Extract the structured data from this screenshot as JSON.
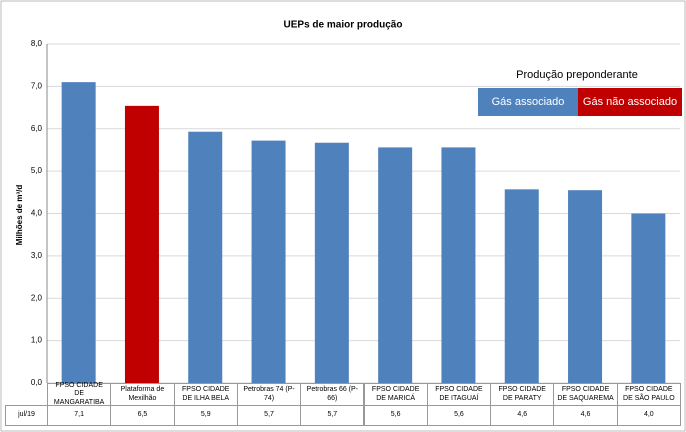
{
  "chart_data": {
    "type": "bar",
    "title": "UEPs de maior produção",
    "y_label": "Milhões de m³/d",
    "categories": [
      "FPSO CIDADE DE MANGARATIBA",
      "Plataforma de Mexilhão",
      "FPSO CIDADE DE ILHA BELA",
      "Petrobras 74 (P-74)",
      "Petrobras 66 (P-66)",
      "FPSO CIDADE DE MARICÁ",
      "FPSO CIDADE DE ITAGUAÍ",
      "FPSO CIDADE DE PARATY",
      "FPSO CIDADE DE SAQUAREMA",
      "FPSO CIDADE DE SÃO PAULO"
    ],
    "series": [
      {
        "name": "jul/19",
        "values": [
          7.1,
          6.54,
          5.93,
          5.72,
          5.67,
          5.56,
          5.56,
          4.57,
          4.55,
          4.0
        ],
        "value_labels": [
          "7,1",
          "6,5",
          "5,9",
          "5,7",
          "5,7",
          "5,6",
          "5,6",
          "4,6",
          "4,6",
          "4,0"
        ],
        "colors": [
          "#4f81bd",
          "#c00000",
          "#4f81bd",
          "#4f81bd",
          "#4f81bd",
          "#4f81bd",
          "#4f81bd",
          "#4f81bd",
          "#4f81bd",
          "#4f81bd"
        ]
      }
    ],
    "legend": {
      "title": "Produção preponderante",
      "items": [
        {
          "name": "Gás associado",
          "color": "#4f81bd"
        },
        {
          "name": "Gás não associado",
          "color": "#c00000"
        }
      ]
    },
    "ylim": [
      0,
      8
    ],
    "yticks": [
      {
        "value": 0,
        "label": "0,0"
      },
      {
        "value": 1,
        "label": "1,0"
      },
      {
        "value": 2,
        "label": "2,0"
      },
      {
        "value": 3,
        "label": "3,0"
      },
      {
        "value": 4,
        "label": "4,0"
      },
      {
        "value": 5,
        "label": "5,0"
      },
      {
        "value": 6,
        "label": "6,0"
      },
      {
        "value": 7,
        "label": "7,0"
      },
      {
        "value": 8,
        "label": "8,0"
      }
    ],
    "grid": true
  }
}
